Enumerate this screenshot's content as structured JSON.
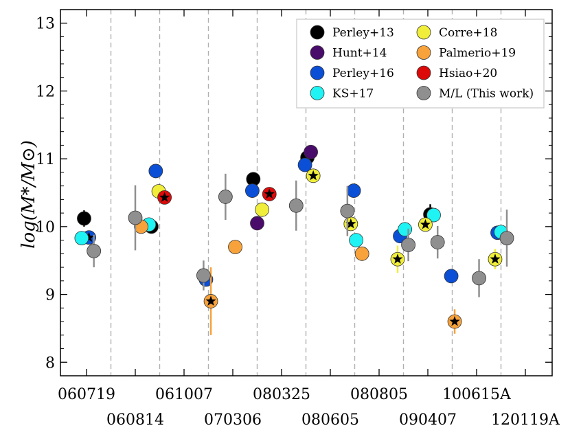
{
  "chart_data": {
    "type": "scatter",
    "ylabel": "log(M*/M⊙)",
    "ylim": [
      7.8,
      13.2
    ],
    "yticks": [
      8,
      9,
      10,
      11,
      12,
      13
    ],
    "ytick_labels": [
      "8",
      "9",
      "10",
      "11",
      "12",
      "13"
    ],
    "categories": [
      "060719",
      "060814",
      "061007",
      "070306",
      "080325",
      "080605",
      "080805",
      "090407",
      "100615A",
      "120119A"
    ],
    "legend_position": "top-right",
    "series": [
      {
        "name": "Perley+13",
        "color": "#000000",
        "points": [
          {
            "x": -0.05,
            "y": 10.12,
            "err": 0.12,
            "star": false
          },
          {
            "x": 1.33,
            "y": 10.0,
            "err": 0,
            "star": false
          },
          {
            "x": 3.42,
            "y": 10.7,
            "err": 0,
            "star": false
          },
          {
            "x": 4.53,
            "y": 11.02,
            "err": 0,
            "star": false
          },
          {
            "x": 7.05,
            "y": 10.18,
            "err": 0.15,
            "star": false
          }
        ]
      },
      {
        "name": "Hunt+14",
        "color": "#4a0c6b",
        "points": [
          {
            "x": 3.5,
            "y": 10.05,
            "err": 0,
            "star": false
          },
          {
            "x": 4.6,
            "y": 11.1,
            "err": 0,
            "star": false
          }
        ]
      },
      {
        "name": "Perley+16",
        "color": "#0b4fd6",
        "points": [
          {
            "x": 0.05,
            "y": 9.84,
            "err": 0.1,
            "star": true
          },
          {
            "x": 1.42,
            "y": 10.82,
            "err": 0,
            "star": false
          },
          {
            "x": 2.45,
            "y": 9.22,
            "err": 0,
            "star": false
          },
          {
            "x": 3.4,
            "y": 10.53,
            "err": 0,
            "star": false
          },
          {
            "x": 4.48,
            "y": 10.91,
            "err": 0,
            "star": false
          },
          {
            "x": 5.48,
            "y": 10.53,
            "err": 0,
            "star": false
          },
          {
            "x": 6.43,
            "y": 9.86,
            "err": 0,
            "star": false
          },
          {
            "x": 7.48,
            "y": 9.27,
            "err": 0,
            "star": false
          },
          {
            "x": 8.43,
            "y": 9.91,
            "err": 0,
            "star": false
          }
        ]
      },
      {
        "name": "KS+17",
        "color": "#1ff3f3",
        "points": [
          {
            "x": -0.1,
            "y": 9.83,
            "err": 0,
            "star": false
          },
          {
            "x": 1.28,
            "y": 10.03,
            "err": 0,
            "star": false
          },
          {
            "x": 5.53,
            "y": 9.8,
            "err": 0,
            "star": false
          },
          {
            "x": 6.53,
            "y": 9.96,
            "err": 0,
            "star": false
          },
          {
            "x": 7.12,
            "y": 10.17,
            "err": 0,
            "star": false
          },
          {
            "x": 8.5,
            "y": 9.92,
            "err": 0,
            "star": false
          }
        ]
      },
      {
        "name": "Corre+18",
        "color": "#f0ee3a",
        "points": [
          {
            "x": 1.48,
            "y": 10.52,
            "err": 0,
            "star": false
          },
          {
            "x": 3.6,
            "y": 10.25,
            "err": 0,
            "star": false
          },
          {
            "x": 4.65,
            "y": 10.75,
            "err": 0.08,
            "star": true
          },
          {
            "x": 5.42,
            "y": 10.04,
            "err": 0.08,
            "star": true
          },
          {
            "x": 6.38,
            "y": 9.52,
            "err": 0.2,
            "star": true
          },
          {
            "x": 6.95,
            "y": 10.03,
            "err": 0.08,
            "star": true
          },
          {
            "x": 8.38,
            "y": 9.52,
            "err": 0.15,
            "star": true
          }
        ]
      },
      {
        "name": "Palmerio+19",
        "color": "#f7a23b",
        "points": [
          {
            "x": 1.12,
            "y": 10.0,
            "err": 0,
            "star": false
          },
          {
            "x": 2.55,
            "y": 8.9,
            "err": 0.5,
            "star": true
          },
          {
            "x": 3.05,
            "y": 9.7,
            "err": 0,
            "star": false
          },
          {
            "x": 5.65,
            "y": 9.6,
            "err": 0,
            "star": false
          },
          {
            "x": 7.55,
            "y": 8.6,
            "err": 0.18,
            "star": true
          }
        ]
      },
      {
        "name": "Hsiao+20",
        "color": "#dd0a0a",
        "points": [
          {
            "x": 1.6,
            "y": 10.43,
            "err": 0,
            "star": true
          },
          {
            "x": 3.75,
            "y": 10.48,
            "err": 0,
            "star": true
          }
        ]
      },
      {
        "name": "M/L (This work)",
        "color": "#8f8f8f",
        "points": [
          {
            "x": 0.15,
            "y": 9.64,
            "err": 0.24,
            "star": false
          },
          {
            "x": 1.0,
            "y": 10.13,
            "err": 0.48,
            "star": false
          },
          {
            "x": 2.4,
            "y": 9.28,
            "err": 0.22,
            "star": false
          },
          {
            "x": 2.85,
            "y": 10.44,
            "err": 0.34,
            "star": false
          },
          {
            "x": 4.3,
            "y": 10.31,
            "err": 0.37,
            "star": false
          },
          {
            "x": 5.35,
            "y": 10.23,
            "err": 0.37,
            "star": false
          },
          {
            "x": 6.6,
            "y": 9.73,
            "err": 0.24,
            "star": false
          },
          {
            "x": 7.2,
            "y": 9.77,
            "err": 0.24,
            "star": false
          },
          {
            "x": 8.05,
            "y": 9.24,
            "err": 0.28,
            "star": false
          },
          {
            "x": 8.62,
            "y": 9.83,
            "err": 0.42,
            "star": false
          }
        ]
      }
    ]
  }
}
